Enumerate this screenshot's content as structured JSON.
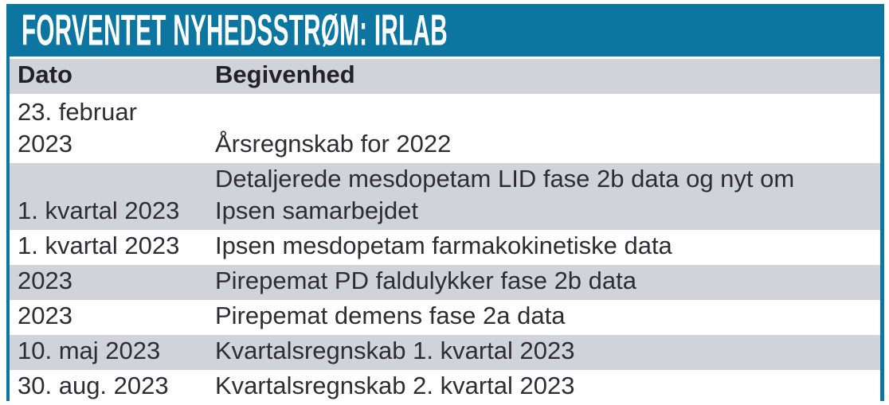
{
  "title": "FORVENTET NYHEDSSTRØM: IRLAB",
  "table": {
    "columns": [
      "Dato",
      "Begivenhed"
    ],
    "rows": [
      {
        "dato": "23. februar\n2023",
        "begivenhed": "Årsregnskab for 2022"
      },
      {
        "dato": "1. kvartal 2023",
        "begivenhed": "Detaljerede mesdopetam LID fase 2b data og nyt om\nIpsen samarbejdet"
      },
      {
        "dato": "1. kvartal 2023",
        "begivenhed": "Ipsen mesdopetam farmakokinetiske data"
      },
      {
        "dato": "2023",
        "begivenhed": "Pirepemat PD faldulykker fase 2b data"
      },
      {
        "dato": "2023",
        "begivenhed": "Pirepemat demens fase 2a data"
      },
      {
        "dato": "10. maj 2023",
        "begivenhed": "Kvartalsregnskab 1. kvartal 2023"
      },
      {
        "dato": "30. aug. 2023",
        "begivenhed": "Kvartalsregnskab 2. kvartal 2023"
      }
    ]
  },
  "colors": {
    "accent_teal": "#0d76a0",
    "row_gray": "#d0d3d9",
    "text": "#2e2d33",
    "header_text": "#232227",
    "title_text": "#ffffff"
  }
}
